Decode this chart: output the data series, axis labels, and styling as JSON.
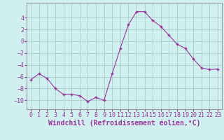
{
  "x": [
    0,
    1,
    2,
    3,
    4,
    5,
    6,
    7,
    8,
    9,
    10,
    11,
    12,
    13,
    14,
    15,
    16,
    17,
    18,
    19,
    20,
    21,
    22,
    23
  ],
  "y": [
    -6.5,
    -5.5,
    -6.3,
    -8.0,
    -9.0,
    -9.0,
    -9.2,
    -10.2,
    -9.5,
    -10.0,
    -5.5,
    -1.2,
    2.8,
    5.0,
    5.0,
    3.5,
    2.5,
    1.0,
    -0.5,
    -1.2,
    -3.0,
    -4.5,
    -4.8,
    -4.7
  ],
  "line_color": "#993399",
  "marker_color": "#993399",
  "bg_color": "#d0f0f0",
  "grid_color": "#aacccc",
  "xlabel": "Windchill (Refroidissement éolien,°C)",
  "ylabel": "",
  "xlim": [
    -0.5,
    23.5
  ],
  "ylim": [
    -11.5,
    6.5
  ],
  "yticks": [
    -10,
    -8,
    -6,
    -4,
    -2,
    0,
    2,
    4
  ],
  "xticks": [
    0,
    1,
    2,
    3,
    4,
    5,
    6,
    7,
    8,
    9,
    10,
    11,
    12,
    13,
    14,
    15,
    16,
    17,
    18,
    19,
    20,
    21,
    22,
    23
  ],
  "tick_label_fontsize": 6,
  "xlabel_fontsize": 7,
  "label_color": "#993399",
  "axis_color": "#999999",
  "spine_color": "#999999"
}
